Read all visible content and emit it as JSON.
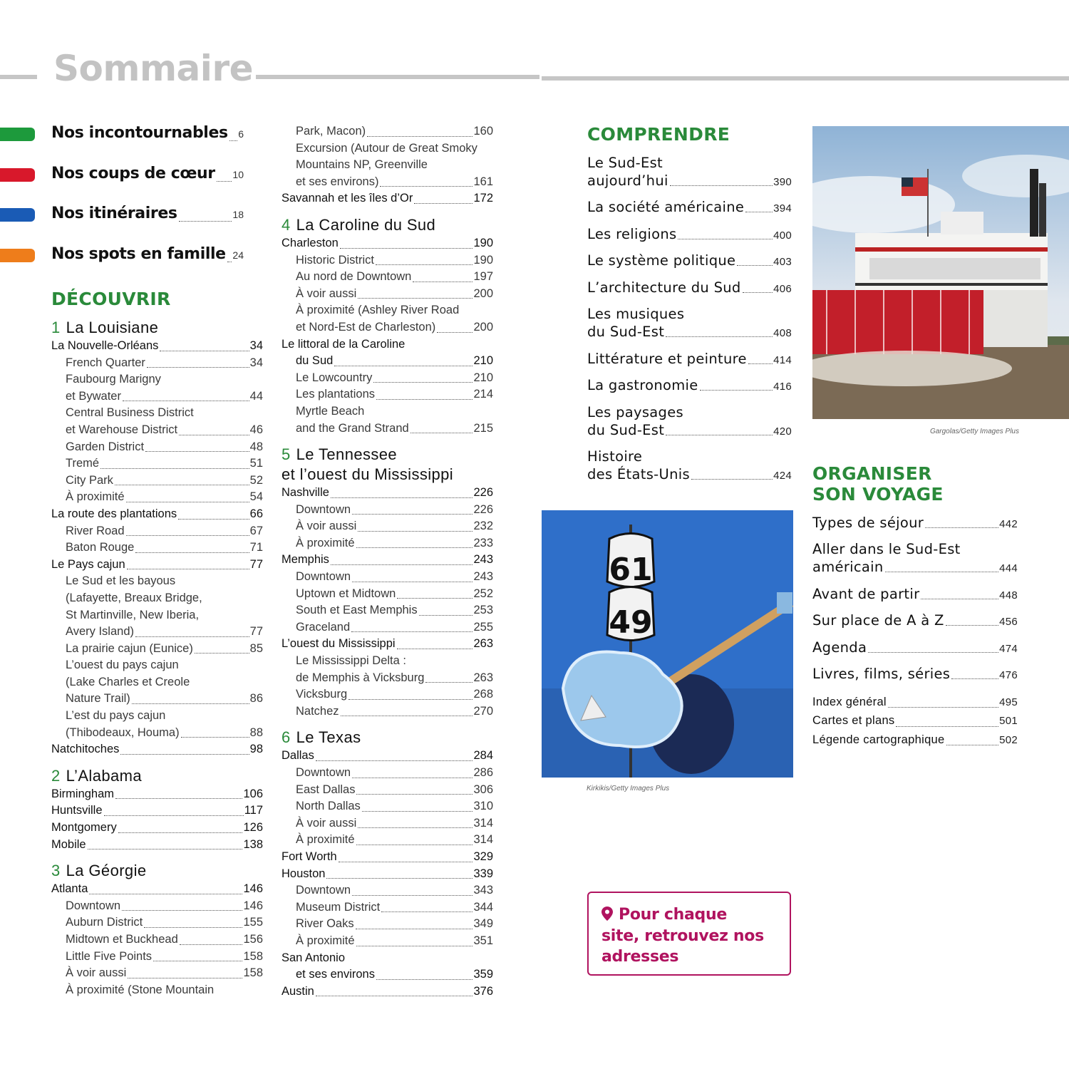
{
  "header": {
    "title": "Sommaire"
  },
  "highlights": [
    {
      "label": "Nos incontournables",
      "page": "6",
      "color": "#1d9a3c"
    },
    {
      "label": "Nos coups de cœur",
      "page": "10",
      "color": "#d8182b"
    },
    {
      "label": "Nos itinéraires",
      "page": "18",
      "color": "#1a5bb5"
    },
    {
      "label": "Nos spots en famille",
      "page": "24",
      "color": "#ee7d1b"
    }
  ],
  "decouvrir": {
    "title": "DÉCOUVRIR"
  },
  "columns": [
    {
      "entries": [
        {
          "t": "h",
          "num": "1",
          "lines": [
            "La Louisiane"
          ]
        },
        {
          "t": "m",
          "lines": [
            "La Nouvelle-Orléans"
          ],
          "page": "34"
        },
        {
          "t": "s",
          "lines": [
            "French Quarter"
          ],
          "page": "34"
        },
        {
          "t": "s",
          "lines": [
            "Faubourg Marigny",
            "et Bywater"
          ],
          "page": "44"
        },
        {
          "t": "s",
          "lines": [
            "Central Business District",
            "et Warehouse District"
          ],
          "page": "46"
        },
        {
          "t": "s",
          "lines": [
            "Garden District"
          ],
          "page": "48"
        },
        {
          "t": "s",
          "lines": [
            "Tremé"
          ],
          "page": "51"
        },
        {
          "t": "s",
          "lines": [
            "City Park"
          ],
          "page": "52"
        },
        {
          "t": "s",
          "lines": [
            "À proximité"
          ],
          "page": "54"
        },
        {
          "t": "m",
          "lines": [
            "La route des plantations"
          ],
          "page": "66"
        },
        {
          "t": "s",
          "lines": [
            "River Road"
          ],
          "page": "67"
        },
        {
          "t": "s",
          "lines": [
            "Baton Rouge"
          ],
          "page": "71"
        },
        {
          "t": "m",
          "lines": [
            "Le Pays cajun"
          ],
          "page": "77"
        },
        {
          "t": "s",
          "lines": [
            "Le Sud et les bayous",
            "(Lafayette, Breaux Bridge,",
            "St Martinville, New Iberia,",
            "Avery Island)"
          ],
          "page": "77"
        },
        {
          "t": "s",
          "lines": [
            "La prairie cajun (Eunice)"
          ],
          "page": "85"
        },
        {
          "t": "s",
          "lines": [
            "L’ouest du pays cajun",
            "(Lake Charles et Creole",
            "Nature Trail)"
          ],
          "page": "86"
        },
        {
          "t": "s",
          "lines": [
            "L’est du pays cajun",
            "(Thibodeaux, Houma)"
          ],
          "page": "88"
        },
        {
          "t": "m",
          "lines": [
            "Natchitoches"
          ],
          "page": "98"
        },
        {
          "t": "h",
          "num": "2",
          "lines": [
            "L’Alabama"
          ]
        },
        {
          "t": "m",
          "lines": [
            "Birmingham"
          ],
          "page": "106"
        },
        {
          "t": "m",
          "lines": [
            "Huntsville"
          ],
          "page": "117"
        },
        {
          "t": "m",
          "lines": [
            "Montgomery"
          ],
          "page": "126"
        },
        {
          "t": "m",
          "lines": [
            "Mobile"
          ],
          "page": "138"
        },
        {
          "t": "h",
          "num": "3",
          "lines": [
            "La Géorgie"
          ]
        },
        {
          "t": "m",
          "lines": [
            "Atlanta"
          ],
          "page": "146"
        },
        {
          "t": "s",
          "lines": [
            "Downtown"
          ],
          "page": "146"
        },
        {
          "t": "s",
          "lines": [
            "Auburn District"
          ],
          "page": "155"
        },
        {
          "t": "s",
          "lines": [
            "Midtown et Buckhead"
          ],
          "page": "156"
        },
        {
          "t": "s",
          "lines": [
            "Little Five Points"
          ],
          "page": "158"
        },
        {
          "t": "s",
          "lines": [
            "À voir aussi"
          ],
          "page": "158"
        },
        {
          "t": "s",
          "lines": [
            "À proximité (Stone Mountain"
          ]
        }
      ]
    },
    {
      "entries": [
        {
          "t": "s",
          "lines": [
            "Park, Macon)"
          ],
          "page": "160"
        },
        {
          "t": "s",
          "lines": [
            "Excursion (Autour de Great Smoky",
            "Mountains NP, Greenville",
            "et ses environs)"
          ],
          "page": "161"
        },
        {
          "t": "m",
          "lines": [
            "Savannah et les îles d’Or"
          ],
          "page": "172"
        },
        {
          "t": "h",
          "num": "4",
          "lines": [
            "La Caroline du Sud"
          ]
        },
        {
          "t": "m",
          "lines": [
            "Charleston"
          ],
          "page": "190"
        },
        {
          "t": "s",
          "lines": [
            "Historic District"
          ],
          "page": "190"
        },
        {
          "t": "s",
          "lines": [
            "Au nord de Downtown"
          ],
          "page": "197"
        },
        {
          "t": "s",
          "lines": [
            "À voir aussi"
          ],
          "page": "200"
        },
        {
          "t": "s",
          "lines": [
            "À proximité (Ashley River Road",
            "et Nord-Est de Charleston)"
          ],
          "page": "200"
        },
        {
          "t": "m",
          "lines": [
            "Le littoral de la Caroline",
            "du Sud"
          ],
          "page": "210"
        },
        {
          "t": "s",
          "lines": [
            "Le Lowcountry"
          ],
          "page": "210"
        },
        {
          "t": "s",
          "lines": [
            "Les plantations"
          ],
          "page": "214"
        },
        {
          "t": "s",
          "lines": [
            "Myrtle Beach",
            "and the Grand Strand"
          ],
          "page": "215"
        },
        {
          "t": "h",
          "num": "5",
          "lines": [
            "Le Tennessee",
            "et l’ouest du Mississippi"
          ]
        },
        {
          "t": "m",
          "lines": [
            "Nashville"
          ],
          "page": "226"
        },
        {
          "t": "s",
          "lines": [
            "Downtown"
          ],
          "page": "226"
        },
        {
          "t": "s",
          "lines": [
            "À voir aussi"
          ],
          "page": "232"
        },
        {
          "t": "s",
          "lines": [
            "À proximité"
          ],
          "page": "233"
        },
        {
          "t": "m",
          "lines": [
            "Memphis"
          ],
          "page": "243"
        },
        {
          "t": "s",
          "lines": [
            "Downtown"
          ],
          "page": "243"
        },
        {
          "t": "s",
          "lines": [
            "Uptown et Midtown"
          ],
          "page": "252"
        },
        {
          "t": "s",
          "lines": [
            "South et East Memphis"
          ],
          "page": "253"
        },
        {
          "t": "s",
          "lines": [
            "Graceland"
          ],
          "page": "255"
        },
        {
          "t": "m",
          "lines": [
            "L’ouest du Mississippi"
          ],
          "page": "263"
        },
        {
          "t": "s",
          "lines": [
            "Le Mississippi Delta :",
            "de Memphis à Vicksburg"
          ],
          "page": "263"
        },
        {
          "t": "s",
          "lines": [
            "Vicksburg"
          ],
          "page": "268"
        },
        {
          "t": "s",
          "lines": [
            "Natchez"
          ],
          "page": "270"
        },
        {
          "t": "h",
          "num": "6",
          "lines": [
            "Le Texas"
          ]
        },
        {
          "t": "m",
          "lines": [
            "Dallas"
          ],
          "page": "284"
        },
        {
          "t": "s",
          "lines": [
            "Downtown"
          ],
          "page": "286"
        },
        {
          "t": "s",
          "lines": [
            "East Dallas"
          ],
          "page": "306"
        },
        {
          "t": "s",
          "lines": [
            "North Dallas"
          ],
          "page": "310"
        },
        {
          "t": "s",
          "lines": [
            "À voir aussi"
          ],
          "page": "314"
        },
        {
          "t": "s",
          "lines": [
            "À proximité"
          ],
          "page": "314"
        },
        {
          "t": "m",
          "lines": [
            "Fort Worth"
          ],
          "page": "329"
        },
        {
          "t": "m",
          "lines": [
            "Houston"
          ],
          "page": "339"
        },
        {
          "t": "s",
          "lines": [
            "Downtown"
          ],
          "page": "343"
        },
        {
          "t": "s",
          "lines": [
            "Museum District"
          ],
          "page": "344"
        },
        {
          "t": "s",
          "lines": [
            "River Oaks"
          ],
          "page": "349"
        },
        {
          "t": "s",
          "lines": [
            "À proximité"
          ],
          "page": "351"
        },
        {
          "t": "m",
          "lines": [
            "San Antonio",
            "et ses environs"
          ],
          "page": "359"
        },
        {
          "t": "m",
          "lines": [
            "Austin"
          ],
          "page": "376"
        }
      ]
    }
  ],
  "comprendre": {
    "title": "COMPRENDRE",
    "entries": [
      {
        "lines": [
          "Le Sud-Est",
          "aujourd’hui"
        ],
        "page": "390"
      },
      {
        "lines": [
          "La société américaine"
        ],
        "page": "394"
      },
      {
        "lines": [
          "Les religions"
        ],
        "page": "400"
      },
      {
        "lines": [
          "Le système politique"
        ],
        "page": "403"
      },
      {
        "lines": [
          "L’architecture du Sud"
        ],
        "page": "406"
      },
      {
        "lines": [
          "Les musiques",
          "du Sud-Est"
        ],
        "page": "408"
      },
      {
        "lines": [
          "Littérature et peinture"
        ],
        "page": "414"
      },
      {
        "lines": [
          "La gastronomie"
        ],
        "page": "416"
      },
      {
        "lines": [
          "Les paysages",
          "du Sud-Est"
        ],
        "page": "420"
      },
      {
        "lines": [
          "Histoire",
          "des États-Unis"
        ],
        "page": "424"
      }
    ]
  },
  "organiser": {
    "title_lines": [
      "ORGANISER",
      "SON VOYAGE"
    ],
    "entries": [
      {
        "lines": [
          "Types de séjour"
        ],
        "page": "442"
      },
      {
        "lines": [
          "Aller dans le Sud-Est",
          "américain"
        ],
        "page": "444"
      },
      {
        "lines": [
          "Avant de partir"
        ],
        "page": "448"
      },
      {
        "lines": [
          "Sur place de A à Z"
        ],
        "page": "456"
      },
      {
        "lines": [
          "Agenda"
        ],
        "page": "474"
      },
      {
        "lines": [
          "Livres, films, séries"
        ],
        "page": "476"
      },
      {
        "lines": [
          "Index général"
        ],
        "page": "495",
        "small": true
      },
      {
        "lines": [
          "Cartes et plans"
        ],
        "page": "501",
        "small": true
      },
      {
        "lines": [
          "Légende cartographique"
        ],
        "page": "502",
        "small": true
      }
    ]
  },
  "photos": {
    "steamboat_credit": "Gargolas/Getty Images Plus",
    "route61_credit": "Kirkikis/Getty Images Plus",
    "route_sign_61": "61",
    "route_sign_49": "49"
  },
  "callout": {
    "lines": [
      "Pour chaque",
      "site, retrouvez nos",
      "adresses"
    ],
    "icon": "map-pin-icon",
    "color": "#b0135f"
  },
  "colors": {
    "accent_green": "#2a8a3a",
    "rule_gray": "#c6c6c6"
  }
}
